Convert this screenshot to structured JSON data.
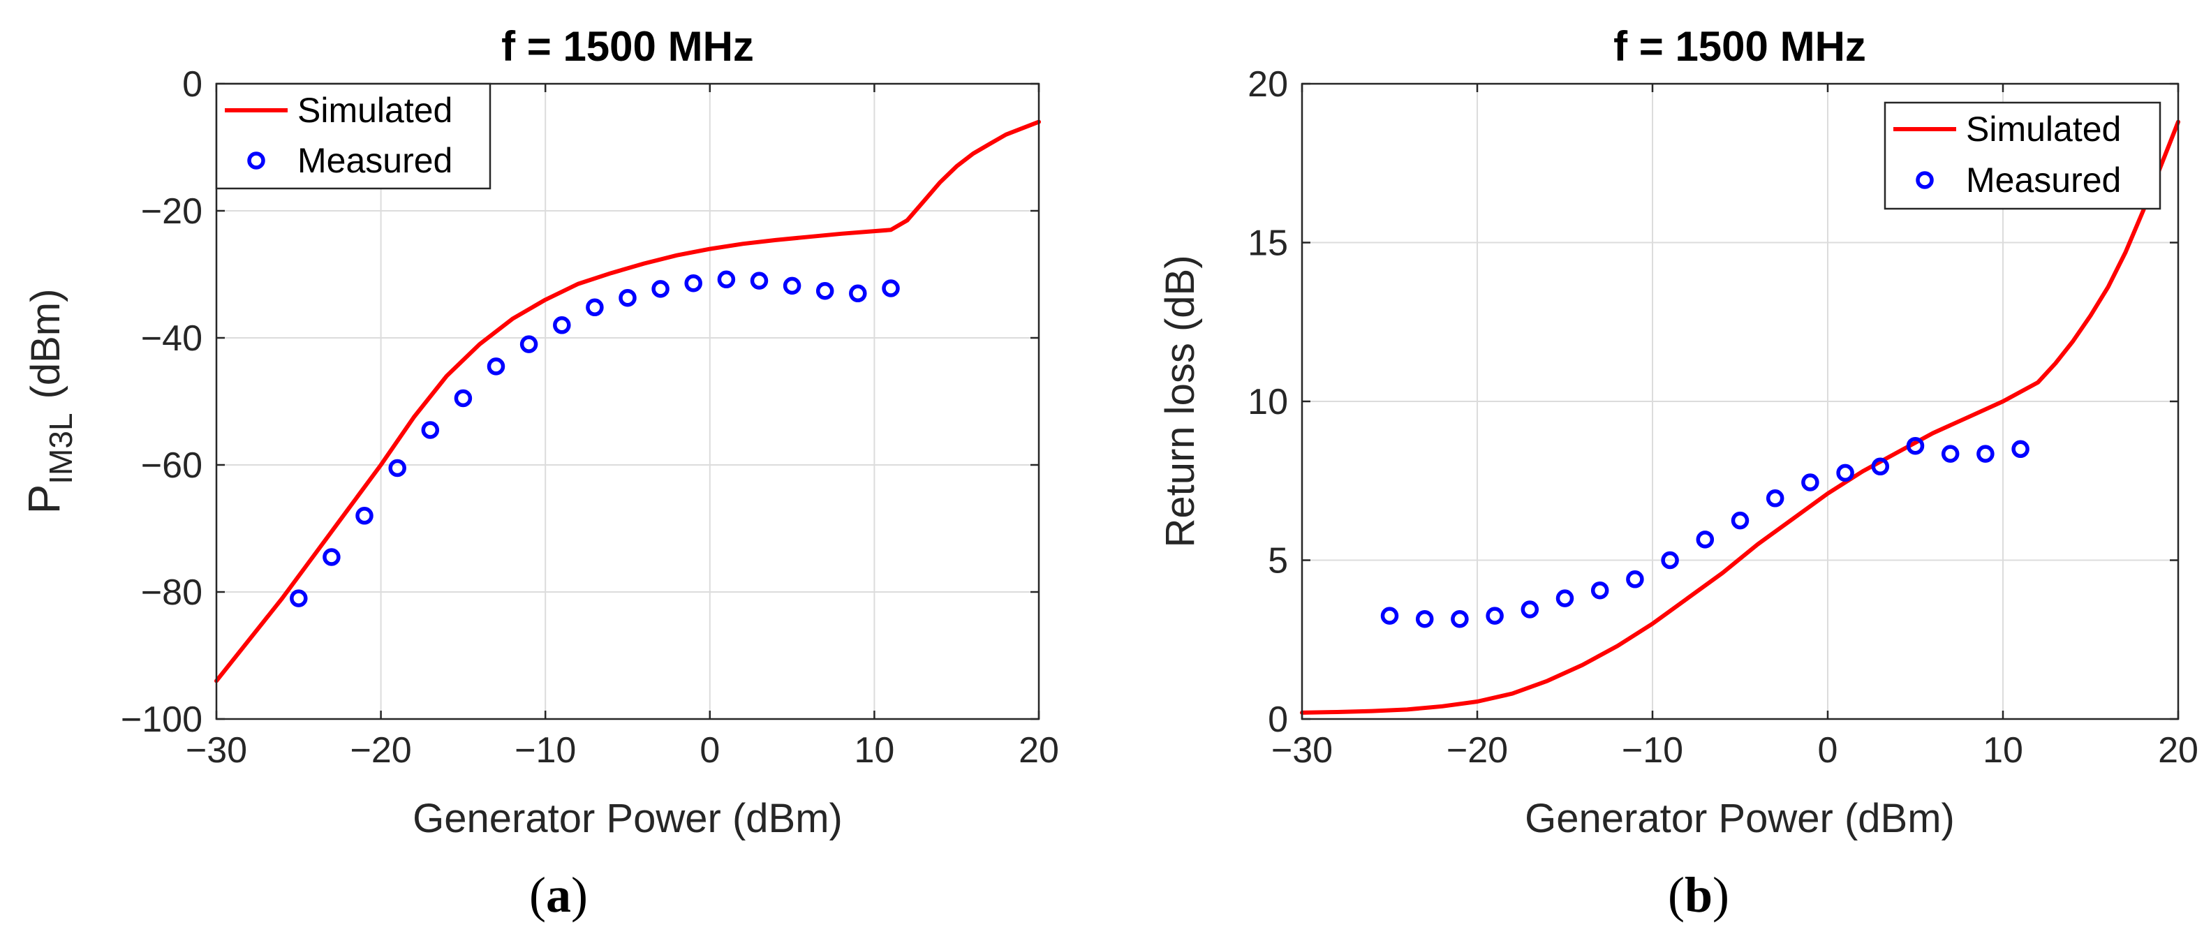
{
  "colors": {
    "simulated": "#ff0000",
    "measured": "#0000ff"
  },
  "chart_data": [
    {
      "type": "line",
      "panel_label": "a",
      "title": "f = 1500 MHz",
      "xlabel": "Generator Power (dBm)",
      "ylabel_main": "P",
      "ylabel_sub": "IM3L",
      "ylabel_unit": "(dBm)",
      "xlim": [
        -30,
        20
      ],
      "ylim": [
        -100,
        0
      ],
      "xticks": [
        -30,
        -20,
        -10,
        0,
        10,
        20
      ],
      "yticks": [
        -100,
        -80,
        -60,
        -40,
        -20,
        0
      ],
      "xtick_labels": [
        "−30",
        "−20",
        "−10",
        "0",
        "10",
        "20"
      ],
      "ytick_labels": [
        "−100",
        "−80",
        "−60",
        "−40",
        "−20",
        "0"
      ],
      "grid": true,
      "legend_position": "top-left",
      "series": [
        {
          "name": "Simulated",
          "style": "line",
          "x": [
            -30,
            -28,
            -26,
            -24,
            -22,
            -20,
            -18,
            -16,
            -14,
            -12,
            -10,
            -8,
            -6,
            -4,
            -2,
            0,
            2,
            4,
            6,
            8,
            10,
            11,
            12,
            13,
            14,
            15,
            16,
            17,
            18,
            19,
            20
          ],
          "y": [
            -94,
            -87.5,
            -81,
            -74,
            -67,
            -60,
            -52.5,
            -46,
            -41,
            -37,
            -34,
            -31.5,
            -29.8,
            -28.3,
            -27,
            -26,
            -25.2,
            -24.6,
            -24.1,
            -23.6,
            -23.2,
            -23,
            -21.5,
            -18.5,
            -15.5,
            -13,
            -11,
            -9.5,
            -8,
            -7,
            -6
          ]
        },
        {
          "name": "Measured",
          "style": "markers",
          "x": [
            -25,
            -23,
            -21,
            -19,
            -17,
            -15,
            -13,
            -11,
            -9,
            -7,
            -5,
            -3,
            -1,
            1,
            3,
            5,
            7,
            9,
            11
          ],
          "y": [
            -81,
            -74.5,
            -68,
            -60.5,
            -54.5,
            -49.5,
            -44.5,
            -41,
            -38,
            -35.2,
            -33.7,
            -32.3,
            -31.4,
            -30.8,
            -31,
            -31.8,
            -32.6,
            -33,
            -32.2
          ]
        }
      ]
    },
    {
      "type": "line",
      "panel_label": "b",
      "title": "f = 1500 MHz",
      "xlabel": "Generator Power (dBm)",
      "ylabel": "Return loss (dB)",
      "xlim": [
        -30,
        20
      ],
      "ylim": [
        0,
        20
      ],
      "xticks": [
        -30,
        -20,
        -10,
        0,
        10,
        20
      ],
      "yticks": [
        0,
        5,
        10,
        15,
        20
      ],
      "xtick_labels": [
        "−30",
        "−20",
        "−10",
        "0",
        "10",
        "20"
      ],
      "ytick_labels": [
        "0",
        "5",
        "10",
        "15",
        "20"
      ],
      "grid": true,
      "legend_position": "top-right",
      "series": [
        {
          "name": "Simulated",
          "style": "line",
          "x": [
            -30,
            -28,
            -26,
            -24,
            -22,
            -20,
            -18,
            -16,
            -14,
            -12,
            -10,
            -8,
            -6,
            -4,
            -2,
            0,
            2,
            4,
            6,
            8,
            10,
            12,
            13,
            14,
            15,
            16,
            17,
            18,
            19,
            20
          ],
          "y": [
            0.2,
            0.22,
            0.25,
            0.3,
            0.4,
            0.55,
            0.8,
            1.2,
            1.7,
            2.3,
            3.0,
            3.8,
            4.6,
            5.5,
            6.3,
            7.1,
            7.8,
            8.4,
            9.0,
            9.5,
            10.0,
            10.6,
            11.2,
            11.9,
            12.7,
            13.6,
            14.7,
            16.0,
            17.4,
            18.8
          ]
        },
        {
          "name": "Measured",
          "style": "markers",
          "x": [
            -25,
            -23,
            -21,
            -19,
            -17,
            -15,
            -13,
            -11,
            -9,
            -7,
            -5,
            -3,
            -1,
            1,
            3,
            5,
            7,
            9,
            11
          ],
          "y": [
            3.25,
            3.15,
            3.15,
            3.25,
            3.45,
            3.8,
            4.05,
            4.4,
            5.0,
            5.65,
            6.25,
            6.95,
            7.45,
            7.75,
            7.95,
            8.6,
            8.35,
            8.35,
            8.5
          ]
        }
      ]
    }
  ]
}
